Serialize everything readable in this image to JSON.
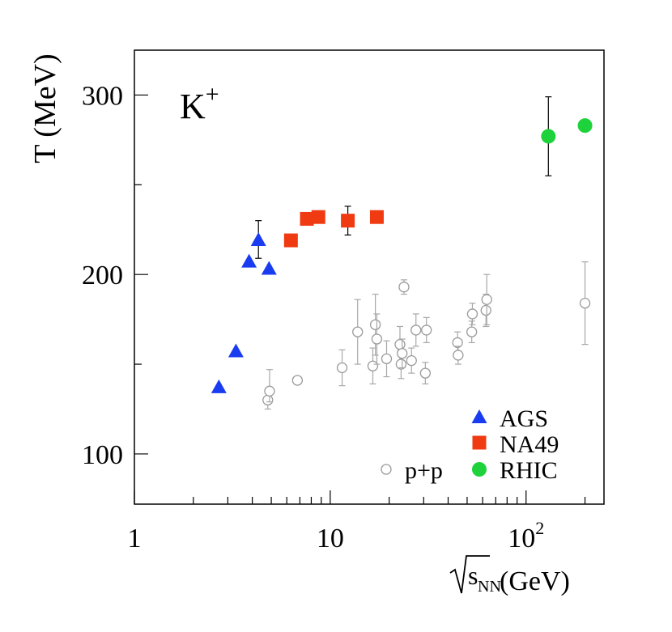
{
  "chart_data": {
    "type": "scatter",
    "title": "K+",
    "title_main": "K",
    "title_sup": "+",
    "xlabel": "√sNN (GeV)",
    "xlabel_parts": {
      "radicand": "s",
      "sub": "NN",
      "unit": "(GeV)"
    },
    "ylabel": "T (MeV)",
    "xscale": "log",
    "xlim": [
      1,
      250
    ],
    "ylim": [
      72,
      325
    ],
    "x_ticks": [
      {
        "value": 1,
        "label": "1"
      },
      {
        "value": 10,
        "label": "10"
      },
      {
        "value": 100,
        "label": "10",
        "sup": "2"
      }
    ],
    "y_ticks": [
      {
        "value": 100,
        "label": "100"
      },
      {
        "value": 200,
        "label": "200"
      },
      {
        "value": 300,
        "label": "300"
      }
    ],
    "y_minor_ticks": [
      150,
      250
    ],
    "legend_position": "bottom-right",
    "series": [
      {
        "name": "AGS",
        "marker": "triangle",
        "color": "#1a3cf0",
        "points": [
          {
            "x": 2.7,
            "y": 137
          },
          {
            "x": 3.3,
            "y": 157
          },
          {
            "x": 3.85,
            "y": 207
          },
          {
            "x": 4.3,
            "y": 219,
            "err_lo": 10,
            "err_hi": 11
          },
          {
            "x": 4.87,
            "y": 203
          }
        ]
      },
      {
        "name": "NA49",
        "marker": "square",
        "color": "#f03a12",
        "points": [
          {
            "x": 6.3,
            "y": 219
          },
          {
            "x": 7.6,
            "y": 231
          },
          {
            "x": 8.7,
            "y": 232
          },
          {
            "x": 12.3,
            "y": 230,
            "err_lo": 8,
            "err_hi": 8
          },
          {
            "x": 17.3,
            "y": 232
          }
        ]
      },
      {
        "name": "RHIC",
        "marker": "circle",
        "color": "#1ed23c",
        "points": [
          {
            "x": 130,
            "y": 277,
            "err_lo": 22,
            "err_hi": 22
          },
          {
            "x": 200,
            "y": 283
          }
        ]
      },
      {
        "name": "p+p",
        "marker": "open-circle",
        "color": "#9a9a9a",
        "points": [
          {
            "x": 4.8,
            "y": 130,
            "err_lo": 5,
            "err_hi": 5
          },
          {
            "x": 4.9,
            "y": 135,
            "err_lo": 6,
            "err_hi": 12
          },
          {
            "x": 6.8,
            "y": 141
          },
          {
            "x": 11.5,
            "y": 148,
            "err_lo": 10,
            "err_hi": 10
          },
          {
            "x": 13.8,
            "y": 168,
            "err_lo": 18,
            "err_hi": 18
          },
          {
            "x": 16.5,
            "y": 149,
            "err_lo": 10,
            "err_hi": 10
          },
          {
            "x": 17.0,
            "y": 172,
            "err_lo": 17,
            "err_hi": 17
          },
          {
            "x": 17.3,
            "y": 164,
            "err_lo": 14,
            "err_hi": 14
          },
          {
            "x": 19.4,
            "y": 153,
            "err_lo": 10,
            "err_hi": 10
          },
          {
            "x": 22.7,
            "y": 161,
            "err_lo": 10,
            "err_hi": 10
          },
          {
            "x": 23.0,
            "y": 150,
            "err_lo": 8,
            "err_hi": 8
          },
          {
            "x": 23.3,
            "y": 156,
            "err_lo": 8,
            "err_hi": 8
          },
          {
            "x": 23.8,
            "y": 193,
            "err_lo": 4,
            "err_hi": 4
          },
          {
            "x": 26.0,
            "y": 152,
            "err_lo": 7,
            "err_hi": 7
          },
          {
            "x": 27.4,
            "y": 169,
            "err_lo": 9,
            "err_hi": 9
          },
          {
            "x": 30.6,
            "y": 145,
            "err_lo": 6,
            "err_hi": 6
          },
          {
            "x": 31.0,
            "y": 169,
            "err_lo": 7,
            "err_hi": 7
          },
          {
            "x": 44.7,
            "y": 162,
            "err_lo": 6,
            "err_hi": 6
          },
          {
            "x": 45.0,
            "y": 155,
            "err_lo": 5,
            "err_hi": 5
          },
          {
            "x": 52.8,
            "y": 168,
            "err_lo": 6,
            "err_hi": 6
          },
          {
            "x": 53.2,
            "y": 178,
            "err_lo": 6,
            "err_hi": 6
          },
          {
            "x": 62.4,
            "y": 180,
            "err_lo": 9,
            "err_hi": 9
          },
          {
            "x": 63.0,
            "y": 186,
            "err_lo": 14,
            "err_hi": 14
          },
          {
            "x": 200,
            "y": 184,
            "err_lo": 23,
            "err_hi": 23
          }
        ]
      }
    ],
    "legend": [
      {
        "label": "AGS",
        "marker": "triangle",
        "color": "#1a3cf0"
      },
      {
        "label": "NA49",
        "marker": "square",
        "color": "#f03a12"
      },
      {
        "label": "RHIC",
        "marker": "circle",
        "color": "#1ed23c"
      },
      {
        "label": "p+p",
        "marker": "open-circle",
        "color": "#9a9a9a"
      }
    ]
  }
}
